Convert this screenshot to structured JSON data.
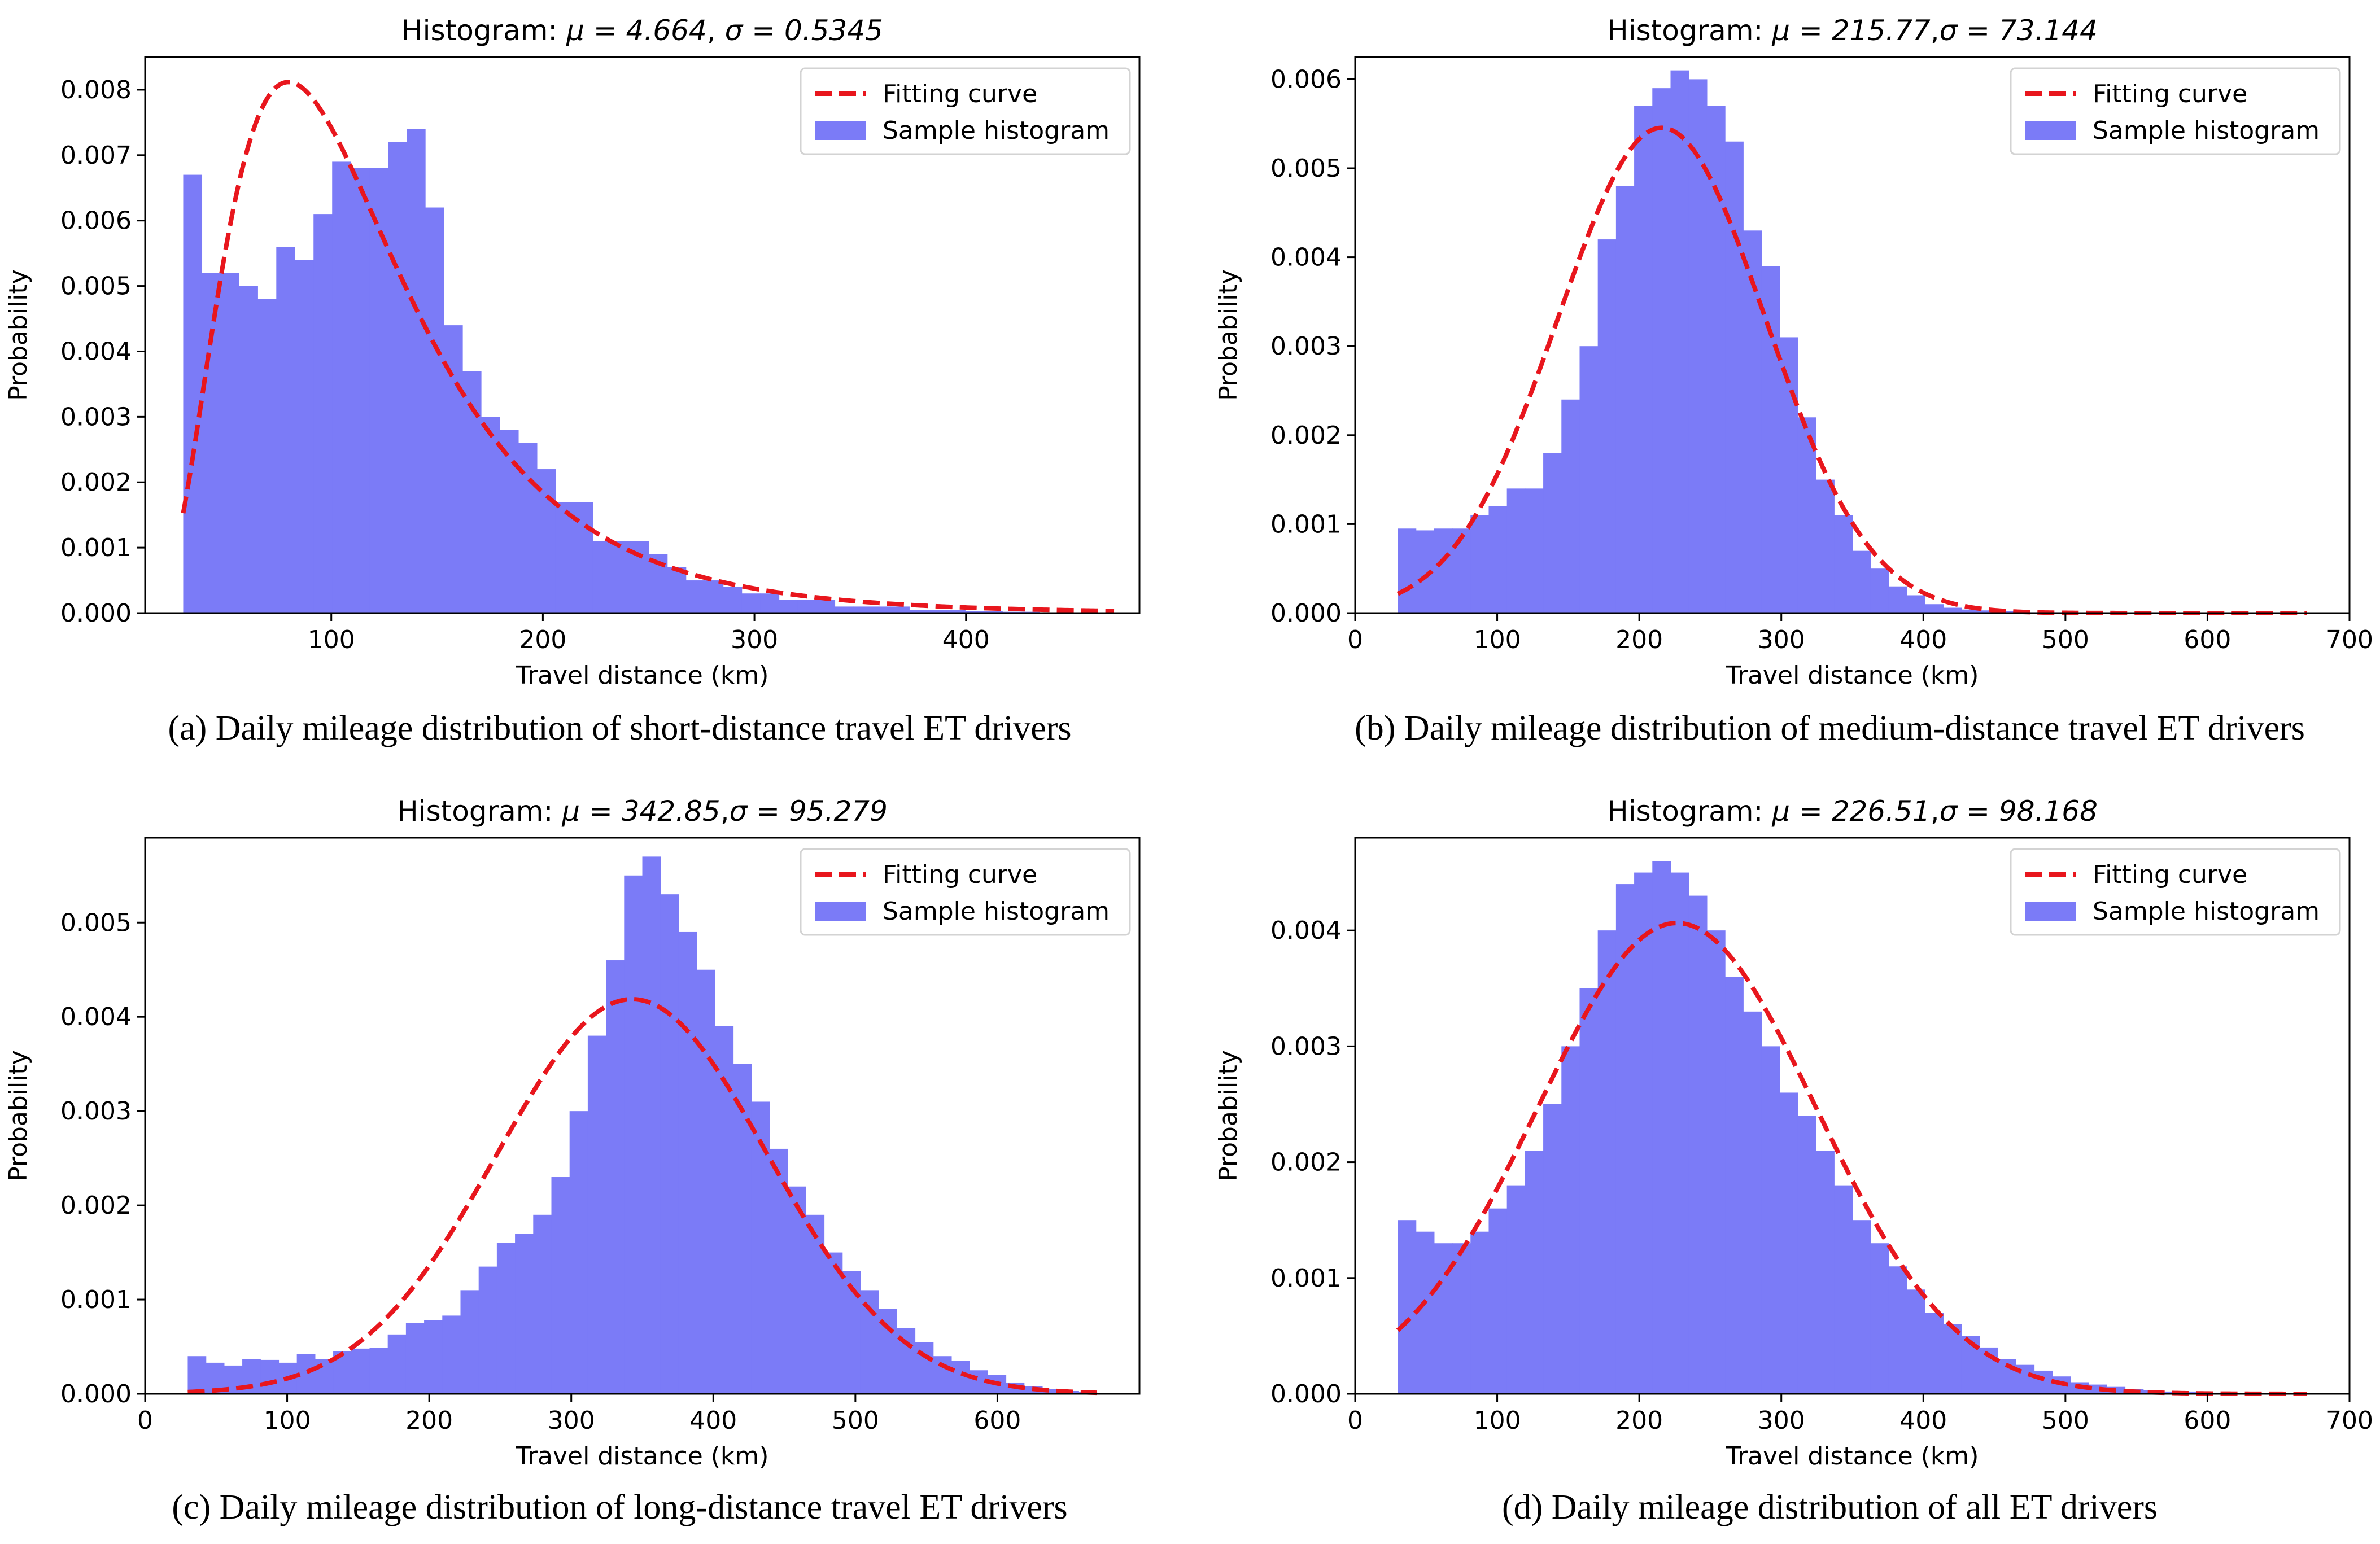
{
  "figure": {
    "panels": [
      {
        "title_prefix": "Histogram: ",
        "title_mu": "μ = 4.664",
        "title_sep": ", ",
        "title_sigma": "σ = 0.5345",
        "caption": "(a) Daily mileage distribution of short-distance travel ET drivers"
      },
      {
        "title_prefix": "Histogram: ",
        "title_mu": "μ = 215.77",
        "title_sep": ",",
        "title_sigma": "σ = 73.144",
        "caption": "(b) Daily mileage distribution of medium-distance travel ET drivers"
      },
      {
        "title_prefix": "Histogram: ",
        "title_mu": "μ = 342.85",
        "title_sep": ",",
        "title_sigma": "σ = 95.279",
        "caption": "(c) Daily mileage distribution of long-distance travel ET drivers"
      },
      {
        "title_prefix": "Histogram: ",
        "title_mu": "μ = 226.51",
        "title_sep": ",",
        "title_sigma": "σ = 98.168",
        "caption": "(d) Daily mileage distribution of all ET drivers"
      }
    ]
  },
  "colors": {
    "bars": "#7b7bf7",
    "curve": "#e8161d",
    "axis": "#000000",
    "legend_border": "#d3d3d3"
  },
  "chart_data": [
    {
      "type": "bar",
      "subtype": "histogram_with_fit",
      "xlabel": "Travel distance (km)",
      "ylabel": "Probability",
      "xlim": [
        12,
        482
      ],
      "ylim": [
        0,
        0.0085
      ],
      "xticks": [
        100,
        200,
        300,
        400
      ],
      "xtick_labels": [
        "100",
        "200",
        "300",
        "400"
      ],
      "yticks": [
        0,
        0.001,
        0.002,
        0.003,
        0.004,
        0.005,
        0.006,
        0.007,
        0.008
      ],
      "ytick_labels": [
        "0.000",
        "0.001",
        "0.002",
        "0.003",
        "0.004",
        "0.005",
        "0.006",
        "0.007",
        "0.008"
      ],
      "legend": {
        "position": "top-right",
        "curve_label": "Fitting curve",
        "bars_label": "Sample histogram"
      },
      "histogram": {
        "bin_start": 30,
        "bin_width": 8.8,
        "values": [
          0.0067,
          0.0052,
          0.0052,
          0.005,
          0.0048,
          0.0056,
          0.0054,
          0.0061,
          0.0069,
          0.0068,
          0.0068,
          0.0072,
          0.0074,
          0.0062,
          0.0044,
          0.0037,
          0.003,
          0.0028,
          0.0026,
          0.0022,
          0.0017,
          0.0017,
          0.0011,
          0.0011,
          0.0011,
          0.0009,
          0.0007,
          0.0005,
          0.0005,
          0.0004,
          0.0003,
          0.0003,
          0.0002,
          0.0002,
          0.0002,
          0.0001,
          0.0001,
          0.0001,
          0.0001,
          5e-05,
          5e-05,
          5e-05,
          3e-05,
          3e-05,
          2e-05,
          2e-05,
          1e-05,
          1e-05,
          1e-05,
          1e-05
        ]
      },
      "fit": {
        "distribution": "lognormal",
        "mu": 4.664,
        "sigma": 0.5345,
        "x_range": [
          30,
          470
        ]
      }
    },
    {
      "type": "bar",
      "subtype": "histogram_with_fit",
      "xlabel": "Travel distance (km)",
      "ylabel": "Probability",
      "xlim": [
        0,
        700
      ],
      "ylim": [
        0,
        0.00625
      ],
      "xticks": [
        0,
        100,
        200,
        300,
        400,
        500,
        600,
        700
      ],
      "xtick_labels": [
        "0",
        "100",
        "200",
        "300",
        "400",
        "500",
        "600",
        "700"
      ],
      "yticks": [
        0,
        0.001,
        0.002,
        0.003,
        0.004,
        0.005,
        0.006
      ],
      "ytick_labels": [
        "0.000",
        "0.001",
        "0.002",
        "0.003",
        "0.004",
        "0.005",
        "0.006"
      ],
      "legend": {
        "position": "top-right",
        "curve_label": "Fitting curve",
        "bars_label": "Sample histogram"
      },
      "histogram": {
        "bin_start": 30,
        "bin_width": 12.8,
        "values": [
          0.00095,
          0.00093,
          0.00095,
          0.00095,
          0.0011,
          0.0012,
          0.0014,
          0.0014,
          0.0018,
          0.0024,
          0.003,
          0.0042,
          0.0048,
          0.0057,
          0.0059,
          0.0061,
          0.006,
          0.0057,
          0.0053,
          0.0043,
          0.0039,
          0.0031,
          0.0022,
          0.0015,
          0.0011,
          0.0007,
          0.0005,
          0.0003,
          0.0002,
          0.0001,
          6e-05,
          4e-05,
          3e-05,
          2e-05,
          1e-05,
          1e-05,
          1e-05,
          0,
          0,
          0,
          0,
          0,
          0,
          0,
          0,
          0,
          0,
          0,
          0,
          0
        ]
      },
      "fit": {
        "distribution": "normal",
        "mu": 215.77,
        "sigma": 73.144,
        "x_range": [
          30,
          670
        ]
      }
    },
    {
      "type": "bar",
      "subtype": "histogram_with_fit",
      "xlabel": "Travel distance (km)",
      "ylabel": "Probability",
      "xlim": [
        0,
        700
      ],
      "ylim": [
        0,
        0.0059
      ],
      "xticks": [
        0,
        100,
        200,
        300,
        400,
        500,
        600
      ],
      "xtick_labels": [
        "0",
        "100",
        "200",
        "300",
        "400",
        "500",
        "600"
      ],
      "yticks": [
        0,
        0.001,
        0.002,
        0.003,
        0.004,
        0.005
      ],
      "ytick_labels": [
        "0.000",
        "0.001",
        "0.002",
        "0.003",
        "0.004",
        "0.005"
      ],
      "legend": {
        "position": "top-right",
        "curve_label": "Fitting curve",
        "bars_label": "Sample histogram"
      },
      "histogram": {
        "bin_start": 30,
        "bin_width": 12.8,
        "values": [
          0.0004,
          0.00033,
          0.0003,
          0.00037,
          0.00036,
          0.00033,
          0.00042,
          0.00037,
          0.00045,
          0.00048,
          0.00049,
          0.00063,
          0.00075,
          0.00078,
          0.00083,
          0.0011,
          0.00135,
          0.0016,
          0.0017,
          0.0019,
          0.0023,
          0.003,
          0.0038,
          0.0046,
          0.0055,
          0.0057,
          0.0053,
          0.0049,
          0.0045,
          0.0039,
          0.0035,
          0.0031,
          0.0026,
          0.0022,
          0.0019,
          0.0015,
          0.0013,
          0.0011,
          0.0009,
          0.0007,
          0.00055,
          0.0004,
          0.00035,
          0.00025,
          0.0002,
          0.00012,
          8e-05,
          5e-05,
          3e-05,
          2e-05
        ]
      },
      "fit": {
        "distribution": "normal",
        "mu": 342.85,
        "sigma": 95.279,
        "x_range": [
          30,
          670
        ]
      }
    },
    {
      "type": "bar",
      "subtype": "histogram_with_fit",
      "xlabel": "Travel distance (km)",
      "ylabel": "Probability",
      "xlim": [
        0,
        700
      ],
      "ylim": [
        0,
        0.0048
      ],
      "xticks": [
        0,
        100,
        200,
        300,
        400,
        500,
        600,
        700
      ],
      "xtick_labels": [
        "0",
        "100",
        "200",
        "300",
        "400",
        "500",
        "600",
        "700"
      ],
      "yticks": [
        0,
        0.001,
        0.002,
        0.003,
        0.004
      ],
      "ytick_labels": [
        "0.000",
        "0.001",
        "0.002",
        "0.003",
        "0.004"
      ],
      "legend": {
        "position": "top-right",
        "curve_label": "Fitting curve",
        "bars_label": "Sample histogram"
      },
      "histogram": {
        "bin_start": 30,
        "bin_width": 12.8,
        "values": [
          0.0015,
          0.0014,
          0.0013,
          0.0013,
          0.0014,
          0.0016,
          0.0018,
          0.0021,
          0.0025,
          0.003,
          0.0035,
          0.004,
          0.0044,
          0.0045,
          0.0046,
          0.0045,
          0.0043,
          0.004,
          0.0036,
          0.0033,
          0.003,
          0.0026,
          0.0024,
          0.0021,
          0.0018,
          0.0015,
          0.0013,
          0.0011,
          0.0009,
          0.0007,
          0.0006,
          0.0005,
          0.0004,
          0.0003,
          0.00025,
          0.0002,
          0.00015,
          0.0001,
          8e-05,
          6e-05,
          4e-05,
          3e-05,
          2e-05,
          2e-05,
          1e-05,
          1e-05,
          0,
          0,
          0,
          0
        ]
      },
      "fit": {
        "distribution": "normal",
        "mu": 226.51,
        "sigma": 98.168,
        "x_range": [
          30,
          670
        ]
      }
    }
  ]
}
